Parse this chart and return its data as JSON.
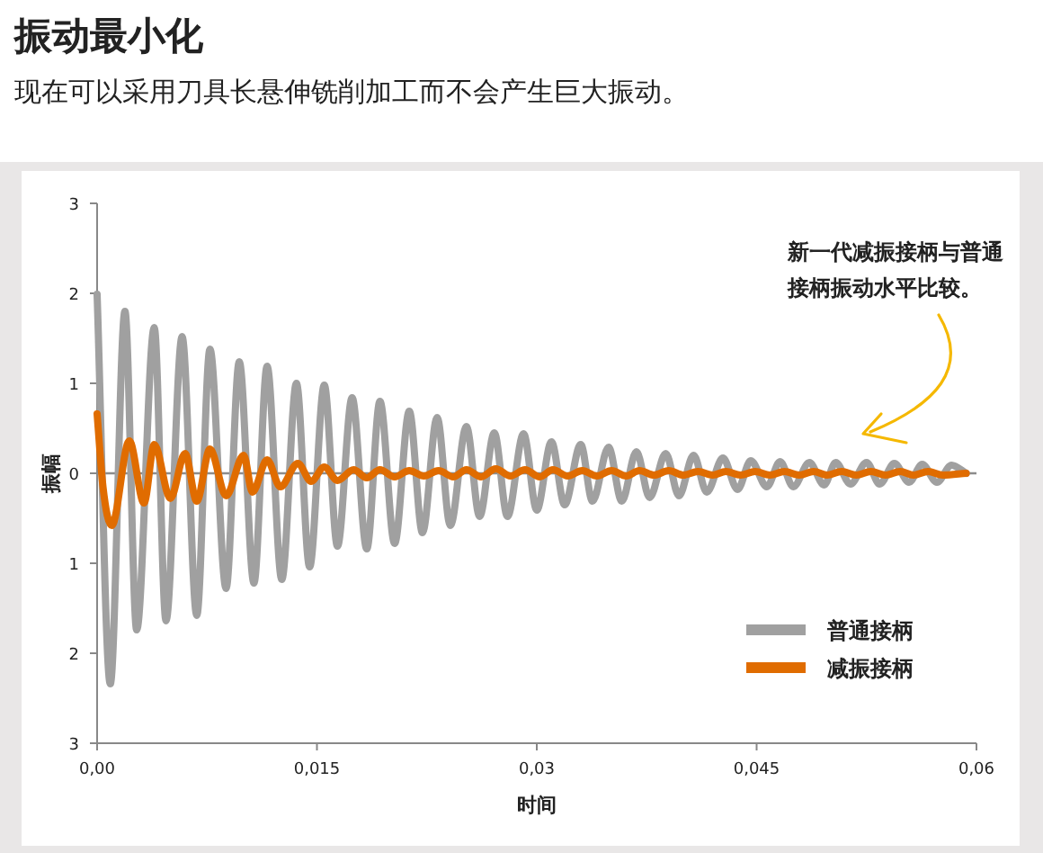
{
  "chart_data": {
    "type": "line",
    "title": "振动最小化",
    "subtitle": "现在可以采用刀具长悬伸铣削加工而不会产生巨大振动。",
    "xlabel": "时间",
    "ylabel": "振幅",
    "annotations": [
      "新一代减振接柄与普通接柄振动水平比较。"
    ],
    "xlim": [
      0,
      0.06
    ],
    "xticks": [
      {
        "value": 0,
        "label": "0,00"
      },
      {
        "value": 0.015,
        "label": "0,015"
      },
      {
        "value": 0.03,
        "label": "0,03"
      },
      {
        "value": 0.045,
        "label": "0,045"
      },
      {
        "value": 0.06,
        "label": "0,06"
      }
    ],
    "ylim": [
      -3,
      3
    ],
    "yticks": [
      {
        "value": -3,
        "label": "3"
      },
      {
        "value": -2,
        "label": "2"
      },
      {
        "value": -1,
        "label": "1"
      },
      0,
      1,
      2,
      3
    ],
    "ref_lines": [
      {
        "axis": "y",
        "value": 0,
        "color": "#8c8c8c"
      }
    ],
    "legend": "bottom right",
    "series": [
      {
        "name": "普通接柄",
        "color": "#a0a0a0",
        "x": [
          0,
          0.0009,
          0.0019,
          0.0027,
          0.0039,
          0.0047,
          0.0058,
          0.0068,
          0.0077,
          0.0088,
          0.0097,
          0.0107,
          0.0116,
          0.0126,
          0.0136,
          0.0145,
          0.0155,
          0.0164,
          0.0174,
          0.0184,
          0.0193,
          0.0203,
          0.0213,
          0.0222,
          0.0232,
          0.0241,
          0.0252,
          0.0261,
          0.0271,
          0.028,
          0.0291,
          0.03,
          0.031,
          0.0319,
          0.033,
          0.0338,
          0.0349,
          0.0358,
          0.0368,
          0.0377,
          0.0388,
          0.0397,
          0.0407,
          0.0416,
          0.0427,
          0.0437,
          0.0446,
          0.0457,
          0.0466,
          0.0475,
          0.0486,
          0.0496,
          0.0504,
          0.0514,
          0.0525,
          0.0534,
          0.0544,
          0.0554,
          0.0563,
          0.0573,
          0.0583,
          0.0593
        ],
        "values": [
          1.99,
          -2.34,
          1.8,
          -1.74,
          1.62,
          -1.64,
          1.52,
          -1.58,
          1.38,
          -1.28,
          1.24,
          -1.22,
          1.19,
          -1.18,
          1.0,
          -1.04,
          0.98,
          -0.81,
          0.84,
          -0.84,
          0.8,
          -0.78,
          0.69,
          -0.66,
          0.62,
          -0.58,
          0.52,
          -0.48,
          0.45,
          -0.48,
          0.44,
          -0.41,
          0.35,
          -0.35,
          0.32,
          -0.31,
          0.29,
          -0.31,
          0.24,
          -0.27,
          0.22,
          -0.25,
          0.2,
          -0.21,
          0.17,
          -0.18,
          0.14,
          -0.15,
          0.13,
          -0.15,
          0.12,
          -0.13,
          0.12,
          -0.12,
          0.12,
          -0.12,
          0.11,
          -0.1,
          0.1,
          -0.1,
          0.09,
          0.0
        ]
      },
      {
        "name": "减振接柄",
        "color": "#e06c00",
        "x": [
          0,
          0.0004,
          0.001,
          0.0022,
          0.0032,
          0.0039,
          0.005,
          0.006,
          0.0068,
          0.0077,
          0.0088,
          0.01,
          0.0106,
          0.0116,
          0.0125,
          0.0137,
          0.0146,
          0.0155,
          0.0164,
          0.0175,
          0.0184,
          0.0193,
          0.0203,
          0.0213,
          0.0223,
          0.0233,
          0.0243,
          0.0252,
          0.0262,
          0.0272,
          0.0282,
          0.0292,
          0.0302,
          0.0311,
          0.0321,
          0.0331,
          0.0341,
          0.0351,
          0.0361,
          0.037,
          0.038,
          0.039,
          0.04,
          0.041,
          0.042,
          0.0429,
          0.0439,
          0.0449,
          0.0459,
          0.0469,
          0.0479,
          0.0489,
          0.0498,
          0.0508,
          0.0518,
          0.0528,
          0.0538,
          0.0548,
          0.0557,
          0.0567,
          0.0577,
          0.0593
        ],
        "values": [
          0.66,
          -0.15,
          -0.58,
          0.36,
          -0.33,
          0.32,
          -0.28,
          0.22,
          -0.31,
          0.27,
          -0.25,
          0.2,
          -0.21,
          0.15,
          -0.15,
          0.11,
          -0.09,
          0.07,
          -0.08,
          0.04,
          -0.05,
          0.04,
          -0.04,
          0.03,
          -0.03,
          0.03,
          -0.04,
          0.04,
          -0.04,
          0.05,
          -0.03,
          0.04,
          -0.04,
          0.04,
          -0.03,
          0.03,
          -0.03,
          0.03,
          -0.03,
          0.03,
          -0.02,
          0.03,
          -0.02,
          0.02,
          -0.02,
          0.02,
          -0.02,
          0.02,
          -0.02,
          0.02,
          -0.02,
          0.02,
          -0.02,
          0.02,
          -0.02,
          0.02,
          -0.02,
          0.02,
          -0.02,
          0.02,
          -0.02,
          0.0
        ]
      }
    ]
  }
}
